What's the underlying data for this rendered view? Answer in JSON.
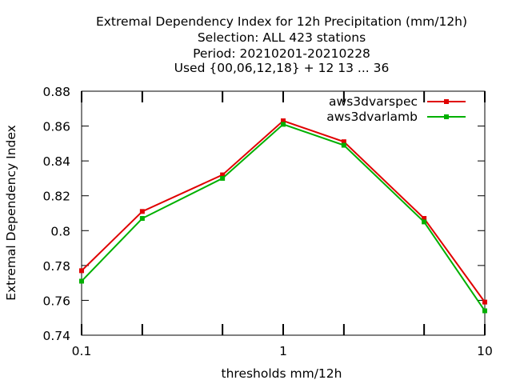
{
  "chart_data": {
    "type": "line",
    "title_lines": [
      "Extremal Dependency Index  for 12h Precipitation (mm/12h)",
      "Selection: ALL     423 stations",
      "Period: 20210201-20210228",
      "Used {00,06,12,18} + 12 13 ... 36"
    ],
    "xlabel": "thresholds mm/12h",
    "ylabel": "Extremal Dependency Index",
    "x_scale": "log",
    "xlim": [
      0.1,
      10
    ],
    "ylim": [
      0.74,
      0.88
    ],
    "x_tick_labels": [
      {
        "value": 0.1,
        "label": "0.1"
      },
      {
        "value": 1,
        "label": "1"
      },
      {
        "value": 10,
        "label": "10"
      }
    ],
    "x_minor_ticks": [
      0.2,
      0.5,
      2,
      5
    ],
    "y_ticks": [
      0.74,
      0.76,
      0.78,
      0.8,
      0.82,
      0.84,
      0.86,
      0.88
    ],
    "y_tick_labels": [
      "0.74",
      "0.76",
      "0.78",
      "0.8",
      "0.82",
      "0.84",
      "0.86",
      "0.88"
    ],
    "grid": false,
    "legend_position": "top-right",
    "x": [
      0.1,
      0.2,
      0.5,
      1,
      2,
      5,
      10
    ],
    "series": [
      {
        "name": "aws3dvarspec",
        "color": "#e00000",
        "values": [
          0.777,
          0.811,
          0.832,
          0.863,
          0.851,
          0.807,
          0.759
        ]
      },
      {
        "name": "aws3dvarlamb",
        "color": "#00b000",
        "values": [
          0.771,
          0.807,
          0.83,
          0.861,
          0.849,
          0.805,
          0.754
        ]
      }
    ]
  }
}
